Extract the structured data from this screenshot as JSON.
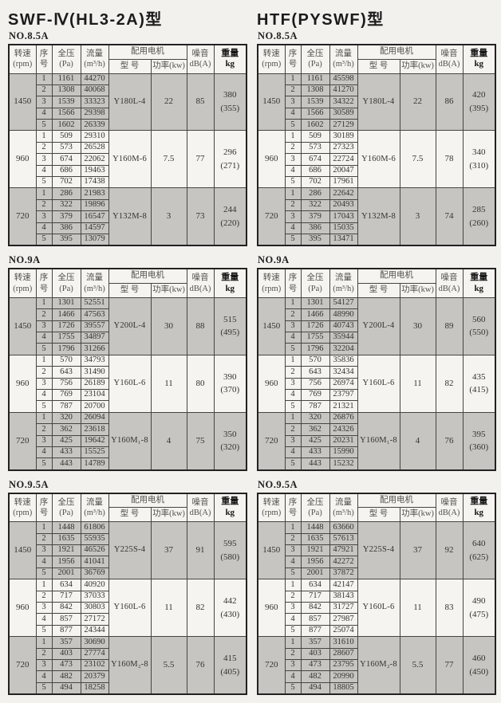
{
  "header": {
    "rpm_l1": "转速",
    "rpm_l2": "(rpm)",
    "seq_l1": "序",
    "seq_l2": "号",
    "pressure_l1": "全压",
    "pressure_l2": "(Pa)",
    "flow_l1": "流量",
    "flow_l2": "(m³/h)",
    "motor": "配用电机",
    "model": "型  号",
    "power": "功率(kw)",
    "noise_l1": "噪音",
    "noise_l2": "dB(A)",
    "weight_l1": "重量",
    "weight_l2": "kg"
  },
  "colors": {
    "band": "#c6c5c2",
    "page_bg": "#f2f1ee",
    "border": "#222222"
  },
  "sections": [
    {
      "title": "SWF-Ⅳ(HL3-2A)型",
      "tables": [
        {
          "label": "NO.8.5A",
          "groups": [
            {
              "rpm": "1450",
              "shaded": true,
              "model": "Y180L-4",
              "power": "22",
              "noise": "85",
              "weight": "380",
              "weight_alt": "(355)",
              "rows": [
                [
                  "1",
                  "1161",
                  "44270"
                ],
                [
                  "2",
                  "1308",
                  "40068"
                ],
                [
                  "3",
                  "1539",
                  "33323"
                ],
                [
                  "4",
                  "1566",
                  "29398"
                ],
                [
                  "5",
                  "1602",
                  "26339"
                ]
              ]
            },
            {
              "rpm": "960",
              "shaded": false,
              "model": "Y160M-6",
              "power": "7.5",
              "noise": "77",
              "weight": "296",
              "weight_alt": "(271)",
              "rows": [
                [
                  "1",
                  "509",
                  "29310"
                ],
                [
                  "2",
                  "573",
                  "26528"
                ],
                [
                  "3",
                  "674",
                  "22062"
                ],
                [
                  "4",
                  "686",
                  "19463"
                ],
                [
                  "5",
                  "702",
                  "17438"
                ]
              ]
            },
            {
              "rpm": "720",
              "shaded": true,
              "model": "Y132M-8",
              "power": "3",
              "noise": "73",
              "weight": "244",
              "weight_alt": "(220)",
              "rows": [
                [
                  "1",
                  "286",
                  "21983"
                ],
                [
                  "2",
                  "322",
                  "19896"
                ],
                [
                  "3",
                  "379",
                  "16547"
                ],
                [
                  "4",
                  "386",
                  "14597"
                ],
                [
                  "5",
                  "395",
                  "13079"
                ]
              ]
            }
          ]
        },
        {
          "label": "NO.9A",
          "groups": [
            {
              "rpm": "1450",
              "shaded": true,
              "model": "Y200L-4",
              "power": "30",
              "noise": "88",
              "weight": "515",
              "weight_alt": "(495)",
              "rows": [
                [
                  "1",
                  "1301",
                  "52551"
                ],
                [
                  "2",
                  "1466",
                  "47563"
                ],
                [
                  "3",
                  "1726",
                  "39557"
                ],
                [
                  "4",
                  "1755",
                  "34897"
                ],
                [
                  "5",
                  "1796",
                  "31266"
                ]
              ]
            },
            {
              "rpm": "960",
              "shaded": false,
              "model": "Y160L-6",
              "power": "11",
              "noise": "80",
              "weight": "390",
              "weight_alt": "(370)",
              "rows": [
                [
                  "1",
                  "570",
                  "34793"
                ],
                [
                  "2",
                  "643",
                  "31490"
                ],
                [
                  "3",
                  "756",
                  "26189"
                ],
                [
                  "4",
                  "769",
                  "23104"
                ],
                [
                  "5",
                  "787",
                  "20700"
                ]
              ]
            },
            {
              "rpm": "720",
              "shaded": true,
              "model": "Y160M₁-8",
              "power": "4",
              "noise": "75",
              "weight": "350",
              "weight_alt": "(320)",
              "rows": [
                [
                  "1",
                  "320",
                  "26094"
                ],
                [
                  "2",
                  "362",
                  "23618"
                ],
                [
                  "3",
                  "425",
                  "19642"
                ],
                [
                  "4",
                  "433",
                  "15525"
                ],
                [
                  "5",
                  "443",
                  "14789"
                ]
              ]
            }
          ]
        },
        {
          "label": "NO.9.5A",
          "groups": [
            {
              "rpm": "1450",
              "shaded": true,
              "model": "Y225S-4",
              "power": "37",
              "noise": "91",
              "weight": "595",
              "weight_alt": "(580)",
              "rows": [
                [
                  "1",
                  "1448",
                  "61806"
                ],
                [
                  "2",
                  "1635",
                  "55935"
                ],
                [
                  "3",
                  "1921",
                  "46526"
                ],
                [
                  "4",
                  "1956",
                  "41041"
                ],
                [
                  "5",
                  "2001",
                  "36769"
                ]
              ]
            },
            {
              "rpm": "960",
              "shaded": false,
              "model": "Y160L-6",
              "power": "11",
              "noise": "82",
              "weight": "442",
              "weight_alt": "(430)",
              "rows": [
                [
                  "1",
                  "634",
                  "40920"
                ],
                [
                  "2",
                  "717",
                  "37033"
                ],
                [
                  "3",
                  "842",
                  "30803"
                ],
                [
                  "4",
                  "857",
                  "27172"
                ],
                [
                  "5",
                  "877",
                  "24344"
                ]
              ]
            },
            {
              "rpm": "720",
              "shaded": true,
              "model": "Y160M₂-8",
              "power": "5.5",
              "noise": "76",
              "weight": "415",
              "weight_alt": "(405)",
              "rows": [
                [
                  "1",
                  "357",
                  "30690"
                ],
                [
                  "2",
                  "403",
                  "27774"
                ],
                [
                  "3",
                  "473",
                  "23102"
                ],
                [
                  "4",
                  "482",
                  "20379"
                ],
                [
                  "5",
                  "494",
                  "18258"
                ]
              ]
            }
          ]
        }
      ]
    },
    {
      "title": "HTF(PYSWF)型",
      "tables": [
        {
          "label": "NO.8.5A",
          "groups": [
            {
              "rpm": "1450",
              "shaded": true,
              "model": "Y180L-4",
              "power": "22",
              "noise": "86",
              "weight": "420",
              "weight_alt": "(395)",
              "rows": [
                [
                  "1",
                  "1161",
                  "45598"
                ],
                [
                  "2",
                  "1308",
                  "41270"
                ],
                [
                  "3",
                  "1539",
                  "34322"
                ],
                [
                  "4",
                  "1566",
                  "30589"
                ],
                [
                  "5",
                  "1602",
                  "27129"
                ]
              ]
            },
            {
              "rpm": "960",
              "shaded": false,
              "model": "Y160M-6",
              "power": "7.5",
              "noise": "78",
              "weight": "340",
              "weight_alt": "(310)",
              "rows": [
                [
                  "1",
                  "509",
                  "30189"
                ],
                [
                  "2",
                  "573",
                  "27323"
                ],
                [
                  "3",
                  "674",
                  "22724"
                ],
                [
                  "4",
                  "686",
                  "20047"
                ],
                [
                  "5",
                  "702",
                  "17961"
                ]
              ]
            },
            {
              "rpm": "720",
              "shaded": true,
              "model": "Y132M-8",
              "power": "3",
              "noise": "74",
              "weight": "285",
              "weight_alt": "(260)",
              "rows": [
                [
                  "1",
                  "286",
                  "22642"
                ],
                [
                  "2",
                  "322",
                  "20493"
                ],
                [
                  "3",
                  "379",
                  "17043"
                ],
                [
                  "4",
                  "386",
                  "15035"
                ],
                [
                  "5",
                  "395",
                  "13471"
                ]
              ]
            }
          ]
        },
        {
          "label": "NO.9A",
          "groups": [
            {
              "rpm": "1450",
              "shaded": true,
              "model": "Y200L-4",
              "power": "30",
              "noise": "89",
              "weight": "560",
              "weight_alt": "(550)",
              "rows": [
                [
                  "1",
                  "1301",
                  "54127"
                ],
                [
                  "2",
                  "1466",
                  "48990"
                ],
                [
                  "3",
                  "1726",
                  "40743"
                ],
                [
                  "4",
                  "1755",
                  "35944"
                ],
                [
                  "5",
                  "1796",
                  "32204"
                ]
              ]
            },
            {
              "rpm": "960",
              "shaded": false,
              "model": "Y160L-6",
              "power": "11",
              "noise": "82",
              "weight": "435",
              "weight_alt": "(415)",
              "rows": [
                [
                  "1",
                  "570",
                  "35836"
                ],
                [
                  "2",
                  "643",
                  "32434"
                ],
                [
                  "3",
                  "756",
                  "26974"
                ],
                [
                  "4",
                  "769",
                  "23797"
                ],
                [
                  "5",
                  "787",
                  "21321"
                ]
              ]
            },
            {
              "rpm": "720",
              "shaded": true,
              "model": "Y160M₁-8",
              "power": "4",
              "noise": "76",
              "weight": "395",
              "weight_alt": "(360)",
              "rows": [
                [
                  "1",
                  "320",
                  "26876"
                ],
                [
                  "2",
                  "362",
                  "24326"
                ],
                [
                  "3",
                  "425",
                  "20231"
                ],
                [
                  "4",
                  "433",
                  "15990"
                ],
                [
                  "5",
                  "443",
                  "15232"
                ]
              ]
            }
          ]
        },
        {
          "label": "NO.9.5A",
          "groups": [
            {
              "rpm": "1450",
              "shaded": true,
              "model": "Y225S-4",
              "power": "37",
              "noise": "92",
              "weight": "640",
              "weight_alt": "(625)",
              "rows": [
                [
                  "1",
                  "1448",
                  "63660"
                ],
                [
                  "2",
                  "1635",
                  "57613"
                ],
                [
                  "3",
                  "1921",
                  "47921"
                ],
                [
                  "4",
                  "1956",
                  "42272"
                ],
                [
                  "5",
                  "2001",
                  "37872"
                ]
              ]
            },
            {
              "rpm": "960",
              "shaded": false,
              "model": "Y160L-6",
              "power": "11",
              "noise": "83",
              "weight": "490",
              "weight_alt": "(475)",
              "rows": [
                [
                  "1",
                  "634",
                  "42147"
                ],
                [
                  "2",
                  "717",
                  "38143"
                ],
                [
                  "3",
                  "842",
                  "31727"
                ],
                [
                  "4",
                  "857",
                  "27987"
                ],
                [
                  "5",
                  "877",
                  "25074"
                ]
              ]
            },
            {
              "rpm": "720",
              "shaded": true,
              "model": "Y160M₂-8",
              "power": "5.5",
              "noise": "77",
              "weight": "460",
              "weight_alt": "(450)",
              "rows": [
                [
                  "1",
                  "357",
                  "31610"
                ],
                [
                  "2",
                  "403",
                  "28607"
                ],
                [
                  "3",
                  "473",
                  "23795"
                ],
                [
                  "4",
                  "482",
                  "20990"
                ],
                [
                  "5",
                  "494",
                  "18805"
                ]
              ]
            }
          ]
        }
      ]
    }
  ]
}
